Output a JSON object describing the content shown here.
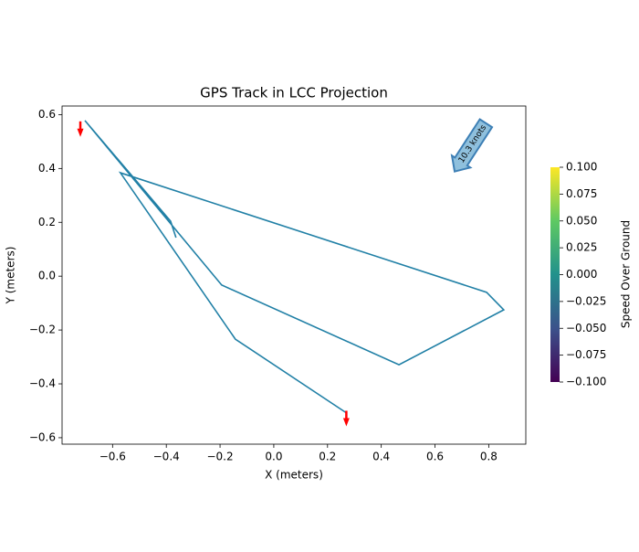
{
  "chart_data": {
    "type": "line",
    "title": "GPS Track in LCC Projection",
    "x_label": "X (meters)",
    "y_label": "Y (meters)",
    "x": [
      -0.364,
      -0.384,
      -0.703,
      -0.194,
      0.466,
      0.856,
      0.792,
      -0.571,
      -0.143,
      0.272
    ],
    "series": [
      {
        "color": "#2180a6",
        "values": [
          0.143,
          0.204,
          0.578,
          -0.033,
          -0.329,
          -0.125,
          -0.06,
          0.384,
          -0.234,
          -0.509
        ]
      }
    ],
    "arrows": {
      "color": "red",
      "x": [
        -0.72,
        0.27
      ],
      "y": [
        0.575,
        -0.5
      ]
    },
    "annotation": "10.3 knots",
    "xlim": [
      -0.788,
      0.938
    ],
    "xticks": [
      {
        "value": -0.6,
        "label": "−0.6"
      },
      {
        "value": -0.4,
        "label": "−0.4"
      },
      {
        "value": -0.2,
        "label": "−0.2"
      },
      {
        "value": 0,
        "label": "0.0"
      },
      0.2,
      0.4,
      0.6,
      0.8
    ],
    "ylim": [
      -0.624,
      0.632
    ],
    "yticks": [
      {
        "value": -0.6,
        "label": "−0.6"
      },
      {
        "value": -0.4,
        "label": "−0.4"
      },
      {
        "value": -0.2,
        "label": "−0.2"
      },
      {
        "value": 0,
        "label": "0.0"
      },
      0.2,
      0.4,
      0.6
    ],
    "colorbar": {
      "label": "Speed Over Ground",
      "lim": [
        -0.1,
        0.1
      ],
      "ticks": [
        {
          "value": -0.1,
          "label": "−0.100"
        },
        {
          "value": -0.075,
          "label": "−0.075"
        },
        {
          "value": -0.05,
          "label": "−0.050"
        },
        {
          "value": -0.025,
          "label": "−0.025"
        },
        {
          "value": 0,
          "label": "0.000"
        },
        {
          "value": 0.025,
          "label": "0.025"
        },
        {
          "value": 0.05,
          "label": "0.050"
        },
        {
          "value": 0.075,
          "label": "0.075"
        },
        {
          "value": 0.1,
          "label": "0.100"
        }
      ]
    }
  }
}
